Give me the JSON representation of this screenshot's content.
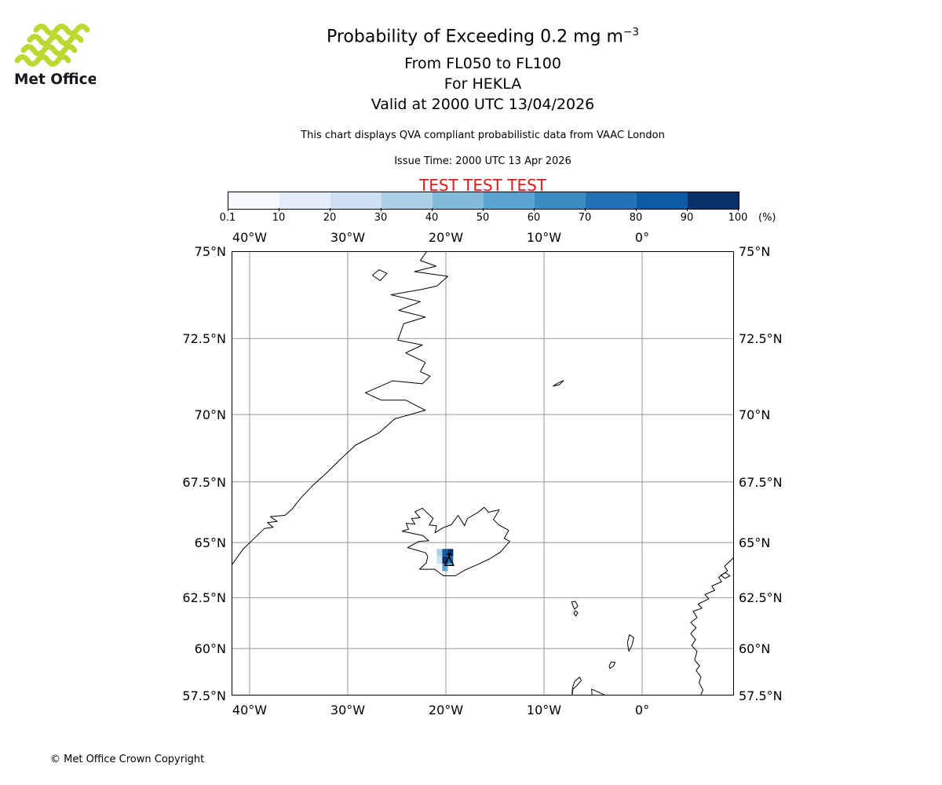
{
  "logo": {
    "text": "Met Office",
    "wave_color": "#bdd733",
    "text_color": "#16161f"
  },
  "header": {
    "title_main": "Probability of Exceeding 0.2 mg m",
    "title_sup": "−3",
    "subtitle_fl": "From FL050 to FL100",
    "subtitle_volcano": "For HEKLA",
    "subtitle_valid": "Valid at 2000 UTC 13/04/2026",
    "info": "This chart displays QVA compliant probabilistic data from VAAC London",
    "issue": "Issue Time: 2000 UTC 13 Apr 2026",
    "test_banner": "TEST TEST TEST",
    "test_color": "#e0191c"
  },
  "colorbar": {
    "labels": [
      "0.1",
      "10",
      "20",
      "30",
      "40",
      "50",
      "60",
      "70",
      "80",
      "90",
      "100"
    ],
    "unit": "(%)",
    "colors": [
      "#f7fbff",
      "#e2edf8",
      "#cde0f1",
      "#abd0e6",
      "#82bbdb",
      "#5ba3d0",
      "#3b8cc2",
      "#2272b5",
      "#0e5aa3",
      "#08306b"
    ]
  },
  "map": {
    "extent": {
      "lon_min": -41.84,
      "lon_max": 9.36,
      "lat_min": 57.5,
      "lat_max": 75
    },
    "grid_color": "#999999",
    "coast_color": "#000000",
    "lon_ticks": [
      {
        "label": "40°W",
        "lon": -40
      },
      {
        "label": "30°W",
        "lon": -30
      },
      {
        "label": "20°W",
        "lon": -20
      },
      {
        "label": "10°W",
        "lon": -10
      },
      {
        "label": "0°",
        "lon": 0
      }
    ],
    "lat_ticks": [
      {
        "label": "75°N",
        "lat": 75
      },
      {
        "label": "72.5°N",
        "lat": 72.5
      },
      {
        "label": "70°N",
        "lat": 70
      },
      {
        "label": "67.5°N",
        "lat": 67.5
      },
      {
        "label": "65°N",
        "lat": 65
      },
      {
        "label": "62.5°N",
        "lat": 62.5
      },
      {
        "label": "60°N",
        "lat": 60
      },
      {
        "label": "57.5°N",
        "lat": 57.5
      }
    ],
    "coastlines": {
      "greenland": [
        [
          -21.8,
          75.05
        ],
        [
          -22.6,
          74.75
        ],
        [
          -21.0,
          74.6
        ],
        [
          -23.2,
          74.45
        ],
        [
          -19.8,
          74.32
        ],
        [
          -20.9,
          74.05
        ],
        [
          -22.5,
          73.95
        ],
        [
          -25.6,
          73.8
        ],
        [
          -22.6,
          73.6
        ],
        [
          -24.8,
          73.35
        ],
        [
          -22.1,
          73.15
        ],
        [
          -24.3,
          72.95
        ],
        [
          -24.9,
          72.45
        ],
        [
          -22.4,
          72.3
        ],
        [
          -24.1,
          72.05
        ],
        [
          -22.1,
          71.75
        ],
        [
          -22.6,
          71.45
        ],
        [
          -21.6,
          71.3
        ],
        [
          -22.4,
          71.05
        ],
        [
          -25.4,
          71.15
        ],
        [
          -28.2,
          70.75
        ],
        [
          -26.6,
          70.5
        ],
        [
          -24.1,
          70.5
        ],
        [
          -22.1,
          70.15
        ],
        [
          -25.2,
          69.85
        ],
        [
          -26.8,
          69.35
        ],
        [
          -29.2,
          68.9
        ],
        [
          -30.8,
          68.35
        ],
        [
          -32.3,
          67.8
        ],
        [
          -33.6,
          67.35
        ],
        [
          -34.8,
          66.85
        ],
        [
          -35.7,
          66.4
        ],
        [
          -36.4,
          66.15
        ],
        [
          -37.9,
          66.1
        ],
        [
          -37.2,
          65.9
        ],
        [
          -38.2,
          65.85
        ],
        [
          -37.6,
          65.65
        ],
        [
          -38.5,
          65.6
        ],
        [
          -39.6,
          65.15
        ],
        [
          -40.7,
          64.7
        ],
        [
          -41.84,
          64.0
        ]
      ],
      "greenland-island": [
        [
          -27.5,
          74.35
        ],
        [
          -26.8,
          74.5
        ],
        [
          -26.0,
          74.4
        ],
        [
          -26.7,
          74.2
        ],
        [
          -27.5,
          74.35
        ]
      ],
      "iceland": [
        [
          -24.5,
          65.49
        ],
        [
          -23.8,
          65.57
        ],
        [
          -24.05,
          65.82
        ],
        [
          -23.15,
          65.78
        ],
        [
          -23.5,
          66.02
        ],
        [
          -22.65,
          66.05
        ],
        [
          -23.15,
          66.3
        ],
        [
          -22.4,
          66.45
        ],
        [
          -21.3,
          66.02
        ],
        [
          -21.7,
          65.75
        ],
        [
          -20.95,
          65.72
        ],
        [
          -21.1,
          65.42
        ],
        [
          -20.35,
          65.62
        ],
        [
          -19.45,
          65.76
        ],
        [
          -18.75,
          66.15
        ],
        [
          -18.1,
          65.72
        ],
        [
          -17.8,
          66.02
        ],
        [
          -16.75,
          66.27
        ],
        [
          -16.1,
          66.48
        ],
        [
          -15.65,
          66.28
        ],
        [
          -14.55,
          66.38
        ],
        [
          -15.15,
          65.98
        ],
        [
          -14.6,
          65.75
        ],
        [
          -13.6,
          65.52
        ],
        [
          -14.05,
          65.18
        ],
        [
          -13.5,
          65.05
        ],
        [
          -14.45,
          64.58
        ],
        [
          -15.55,
          64.28
        ],
        [
          -16.75,
          64.03
        ],
        [
          -18.05,
          63.78
        ],
        [
          -19.05,
          63.52
        ],
        [
          -20.25,
          63.52
        ],
        [
          -21.15,
          63.82
        ],
        [
          -22.7,
          63.82
        ],
        [
          -22.0,
          64.1
        ],
        [
          -21.85,
          64.38
        ],
        [
          -22.05,
          64.55
        ],
        [
          -23.9,
          64.78
        ],
        [
          -22.75,
          65.05
        ],
        [
          -21.75,
          65.08
        ],
        [
          -22.35,
          65.3
        ],
        [
          -24.5,
          65.49
        ]
      ],
      "norway": [
        [
          9.36,
          64.35
        ],
        [
          8.4,
          63.95
        ],
        [
          8.7,
          63.75
        ],
        [
          7.8,
          63.45
        ],
        [
          8.1,
          63.25
        ],
        [
          7.1,
          63.05
        ],
        [
          7.4,
          62.85
        ],
        [
          6.4,
          62.65
        ],
        [
          6.8,
          62.45
        ],
        [
          5.7,
          62.2
        ],
        [
          6.1,
          62.0
        ],
        [
          5.2,
          61.85
        ],
        [
          5.6,
          61.55
        ],
        [
          4.95,
          61.3
        ],
        [
          5.5,
          61.05
        ],
        [
          4.95,
          60.75
        ],
        [
          5.45,
          60.45
        ],
        [
          5.05,
          60.15
        ],
        [
          5.6,
          59.85
        ],
        [
          5.35,
          59.4
        ],
        [
          5.85,
          59.1
        ],
        [
          5.5,
          58.85
        ],
        [
          6.0,
          58.5
        ],
        [
          5.8,
          58.2
        ],
        [
          6.2,
          57.8
        ],
        [
          5.9,
          57.45
        ]
      ],
      "norway-island": [
        [
          8.0,
          63.55
        ],
        [
          8.5,
          63.66
        ],
        [
          8.95,
          63.52
        ],
        [
          8.45,
          63.4
        ],
        [
          8.0,
          63.55
        ]
      ],
      "faroe-islands": [
        [
          -7.2,
          62.3
        ],
        [
          -6.8,
          62.33
        ],
        [
          -6.55,
          62.1
        ],
        [
          -6.9,
          61.95
        ],
        [
          -7.2,
          62.3
        ]
      ],
      "faroe-south": [
        [
          -6.8,
          61.88
        ],
        [
          -6.55,
          61.78
        ],
        [
          -6.75,
          61.62
        ],
        [
          -6.95,
          61.75
        ],
        [
          -6.8,
          61.88
        ]
      ],
      "jan-mayen": [
        [
          -9.1,
          70.97
        ],
        [
          -8.55,
          71.08
        ],
        [
          -8.0,
          71.16
        ],
        [
          -8.45,
          71.02
        ],
        [
          -9.1,
          70.97
        ]
      ],
      "shetland": [
        [
          -1.35,
          59.85
        ],
        [
          -1.05,
          60.15
        ],
        [
          -0.85,
          60.55
        ],
        [
          -1.3,
          60.7
        ],
        [
          -1.5,
          60.3
        ],
        [
          -1.35,
          59.85
        ]
      ],
      "orkney": [
        [
          -3.3,
          58.95
        ],
        [
          -2.9,
          59.1
        ],
        [
          -2.75,
          59.28
        ],
        [
          -3.15,
          59.3
        ],
        [
          -3.35,
          59.1
        ],
        [
          -3.3,
          58.95
        ]
      ],
      "outer-hebrides": [
        [
          -7.15,
          57.45
        ],
        [
          -7.05,
          57.85
        ],
        [
          -6.65,
          58.05
        ],
        [
          -6.2,
          58.32
        ],
        [
          -6.38,
          58.5
        ],
        [
          -6.9,
          58.25
        ],
        [
          -7.1,
          57.9
        ],
        [
          -7.15,
          57.45
        ]
      ],
      "scotland": [
        [
          -5.1,
          57.45
        ],
        [
          -5.15,
          57.85
        ],
        [
          -4.5,
          57.7
        ],
        [
          -3.9,
          57.55
        ],
        [
          -3.8,
          57.45
        ]
      ]
    }
  },
  "footer": {
    "copyright": "© Met Office Crown Copyright"
  },
  "chart_data": {
    "type": "heatmap",
    "title": "Probability of Exceeding 0.2 mg m⁻³",
    "subtitles": [
      "From FL050 to FL100",
      "For HEKLA",
      "Valid at 2000 UTC 13/04/2026"
    ],
    "source_note": "This chart displays QVA compliant probabilistic data from VAAC London",
    "issue_time": "2000 UTC 13 Apr 2026",
    "colorbar": {
      "levels": [
        0.1,
        10,
        20,
        30,
        40,
        50,
        60,
        70,
        80,
        90,
        100
      ],
      "unit": "%"
    },
    "x_axis": {
      "kind": "longitude",
      "tick_labels": [
        "40°W",
        "30°W",
        "20°W",
        "10°W",
        "0°"
      ],
      "range_deg": [
        -41.84,
        9.36
      ]
    },
    "y_axis": {
      "kind": "latitude",
      "tick_labels": [
        "75°N",
        "72.5°N",
        "70°N",
        "67.5°N",
        "65°N",
        "62.5°N",
        "60°N",
        "57.5°N"
      ],
      "range_deg": [
        57.5,
        75
      ],
      "projection": "mercator"
    },
    "volcano": {
      "name": "HEKLA",
      "lon": -19.67,
      "lat": 64.17
    },
    "cell_w_deg": 0.5625,
    "cell_h_deg": 0.33,
    "cells": [
      {
        "lon": -20.93,
        "lat": 64.39,
        "probability_pct": 30
      },
      {
        "lon": -20.37,
        "lat": 64.39,
        "probability_pct": 85
      },
      {
        "lon": -19.81,
        "lat": 64.39,
        "probability_pct": 95
      },
      {
        "lon": -20.93,
        "lat": 64.06,
        "probability_pct": 20
      },
      {
        "lon": -20.37,
        "lat": 64.06,
        "probability_pct": 95
      },
      {
        "lon": -19.81,
        "lat": 64.06,
        "probability_pct": 75
      },
      {
        "lon": -20.37,
        "lat": 63.73,
        "probability_pct": 55
      }
    ]
  }
}
